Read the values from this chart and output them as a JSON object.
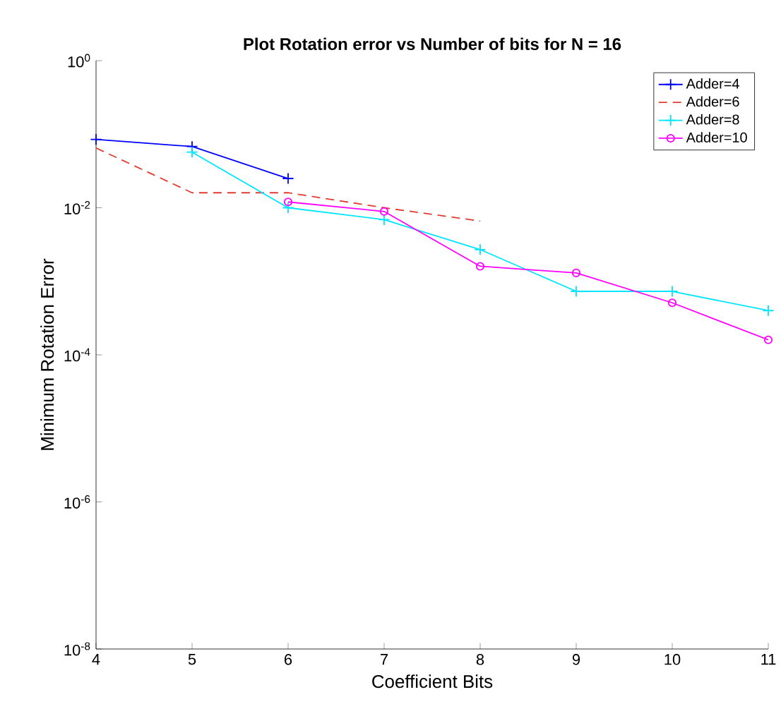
{
  "chart_data": {
    "type": "line",
    "title": "Plot Rotation error vs Number of bits for N = 16",
    "xlabel": "Coefficient Bits",
    "ylabel": "Minimum Rotation Error",
    "log": "y",
    "xlim": [
      4,
      11
    ],
    "xticks": [
      4,
      5,
      6,
      7,
      8,
      9,
      10,
      11
    ],
    "ylim": [
      1e-08,
      1
    ],
    "yticks": [
      {
        "value": 1e-08,
        "label": "10$^{-8}$"
      },
      {
        "value": 1e-06,
        "label": "10$^{-6}$"
      },
      {
        "value": 0.0001,
        "label": "10$^{-4}$"
      },
      {
        "value": 0.01,
        "label": "10$^{-2}$"
      },
      {
        "value": 1,
        "label": "10$^{0}$"
      }
    ],
    "legend": "top right",
    "grid": false,
    "series": [
      {
        "name": "Adder=4",
        "color": "#0000ff",
        "marker": "cross",
        "line_style": "solid",
        "x": [
          4,
          5,
          6
        ],
        "values": [
          0.085,
          0.068,
          0.025
        ]
      },
      {
        "name": "Adder=6",
        "color": "#e03c31",
        "marker": "none",
        "line_style": "dashed",
        "x": [
          4,
          5,
          6,
          7,
          8
        ],
        "values": [
          0.065,
          0.016,
          0.016,
          0.01,
          0.0066
        ]
      },
      {
        "name": "Adder=8",
        "color": "#00e5ff",
        "marker": "cross",
        "line_style": "solid",
        "x": [
          5,
          6,
          7,
          8,
          9,
          10,
          11
        ],
        "values": [
          0.057,
          0.01,
          0.0069,
          0.0027,
          0.00073,
          0.00073,
          0.0004
        ]
      },
      {
        "name": "Adder=10",
        "color": "#ff00ff",
        "marker": "circle",
        "line_style": "solid",
        "x": [
          6,
          7,
          8,
          9,
          10,
          11
        ],
        "values": [
          0.012,
          0.0089,
          0.0016,
          0.0013,
          0.00051,
          0.00016
        ]
      }
    ]
  }
}
